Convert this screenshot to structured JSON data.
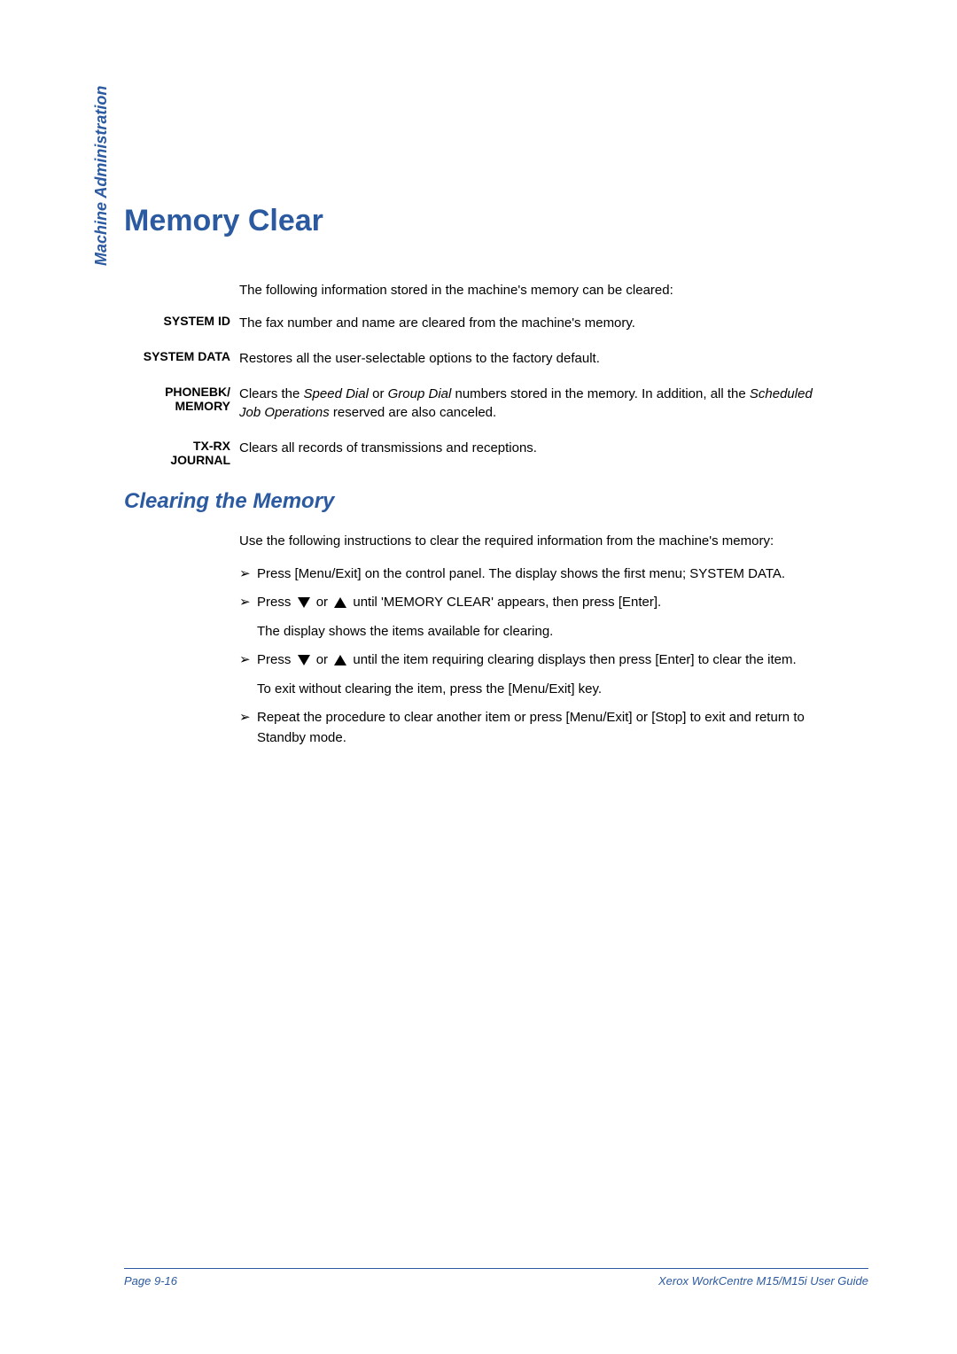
{
  "colors": {
    "accent": "#2b5aa0",
    "text": "#000000",
    "background": "#ffffff"
  },
  "typography": {
    "heading_fontsize": 34,
    "subheading_fontsize": 24,
    "body_fontsize": 15,
    "term_fontsize": 14,
    "footer_fontsize": 13
  },
  "sidebar": {
    "section_label": "Machine Administration"
  },
  "heading": "Memory Clear",
  "intro": "The following information stored in the machine's memory can be cleared:",
  "definitions": [
    {
      "term": "SYSTEM ID",
      "desc_plain": "The fax number and name are cleared from the machine's memory."
    },
    {
      "term": "SYSTEM DATA",
      "desc_plain": "Restores all the user-selectable options to the factory default."
    },
    {
      "term_line1": "PHONEBK/",
      "term_line2": "MEMORY",
      "desc_prefix": "Clears the ",
      "desc_italic1": "Speed Dial",
      "desc_mid1": " or ",
      "desc_italic2": "Group Dial",
      "desc_mid2": " numbers stored in the memory. In addition, all the ",
      "desc_italic3": "Scheduled Job Operations",
      "desc_suffix": " reserved are also canceled."
    },
    {
      "term_line1": "TX-RX",
      "term_line2": "JOURNAL",
      "desc_plain": "Clears all records of transmissions and receptions."
    }
  ],
  "subheading": "Clearing the Memory",
  "instructions_intro": "Use the following instructions to clear the required information from the machine's memory:",
  "steps": [
    {
      "text": "Press [Menu/Exit] on the control panel. The display shows the first menu; SYSTEM DATA."
    },
    {
      "prefix": "Press ",
      "mid": " or ",
      "suffix": " until 'MEMORY CLEAR' appears, then press [Enter].",
      "sub": "The display shows the items available for clearing.",
      "has_arrows": true
    },
    {
      "prefix": "Press ",
      "mid": " or ",
      "suffix": " until the item requiring clearing displays then press [Enter] to clear the item.",
      "sub": "To exit without clearing the item, press the [Menu/Exit] key.",
      "has_arrows": true
    },
    {
      "text": "Repeat the procedure to clear another item or press [Menu/Exit] or [Stop] to exit and return to Standby mode."
    }
  ],
  "footer": {
    "page": "Page 9-16",
    "guide": "Xerox WorkCentre M15/M15i User Guide"
  }
}
